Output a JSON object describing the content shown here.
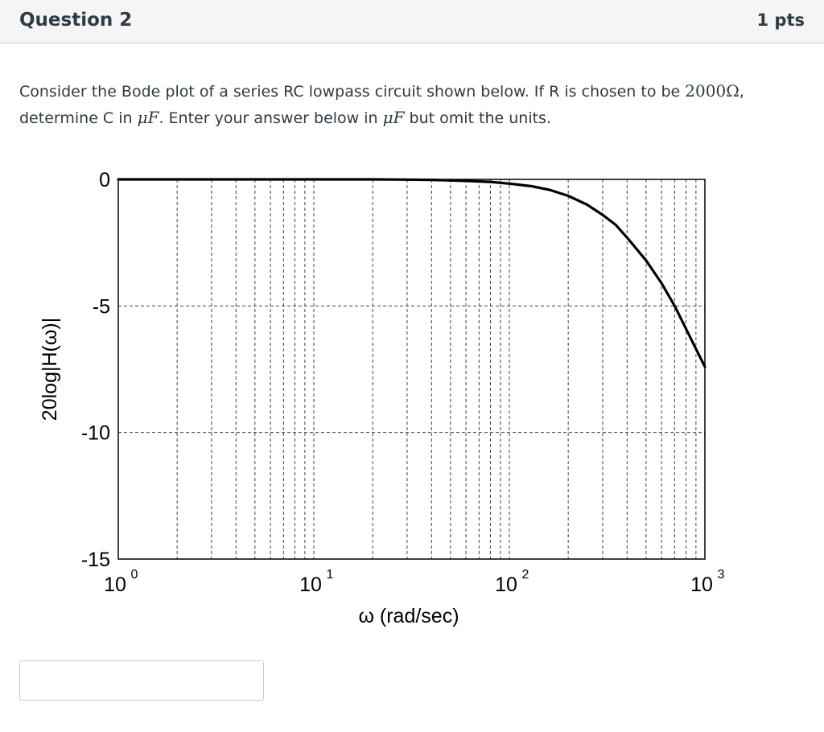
{
  "question": {
    "title": "Question 2",
    "points": "1 pts",
    "text": {
      "p1": "Consider the Bode plot of a series RC lowpass circuit shown below. If R is chosen to be ",
      "resistance": "2000Ω",
      "p2": ",",
      "p3": "determine C in ",
      "unit1": "μF",
      "p4": ". Enter your answer below in ",
      "unit2": "μF",
      "p5": " but omit the units."
    }
  },
  "chart_data": {
    "type": "line",
    "xscale": "log",
    "xlim": [
      1,
      1000
    ],
    "ylim": [
      -15,
      0
    ],
    "ylabel": "20log|H(ω)|",
    "xlabel": "ω (rad/sec)",
    "yticks": [
      "0",
      "-5",
      "-10",
      "-15"
    ],
    "xticks": [
      {
        "base": "10",
        "exp": "0"
      },
      {
        "base": "10",
        "exp": "1"
      },
      {
        "base": "10",
        "exp": "2"
      },
      {
        "base": "10",
        "exp": "3"
      }
    ],
    "grid": true,
    "series": [
      {
        "x": [
          1,
          5,
          10,
          20,
          30,
          40,
          50,
          60,
          80,
          100,
          130,
          160,
          200,
          250,
          300,
          350,
          400,
          500,
          600,
          700,
          800,
          900,
          1000
        ],
        "y": [
          0,
          0,
          0,
          0,
          -0.01,
          -0.02,
          -0.04,
          -0.06,
          -0.1,
          -0.17,
          -0.27,
          -0.41,
          -0.65,
          -1.0,
          -1.4,
          -1.8,
          -2.3,
          -3.2,
          -4.1,
          -5.0,
          -5.9,
          -6.7,
          -7.4
        ]
      }
    ]
  },
  "answer": {
    "value": "",
    "placeholder": ""
  }
}
